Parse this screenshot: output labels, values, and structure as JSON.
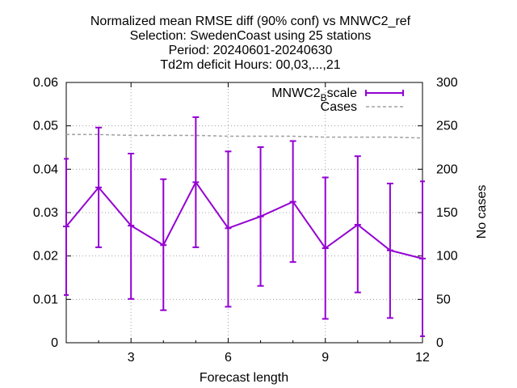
{
  "chart_data": {
    "type": "line",
    "title_lines": [
      "Normalized mean RMSE diff (90% conf) vs MNWC2_ref",
      "Selection: SwedenCoast using    25 stations",
      "Period: 20240601-20240630",
      "Td2m deficit   Hours: 00,03,...,21"
    ],
    "xlabel": "Forecast length",
    "ylabel_right": "No cases",
    "xlim": [
      1,
      12
    ],
    "ylim_left": [
      0,
      0.06
    ],
    "ylim_right": [
      0,
      300
    ],
    "x_ticks": [
      "3",
      "6",
      "9",
      "12"
    ],
    "y_left_ticks": [
      "0",
      "0.01",
      "0.02",
      "0.03",
      "0.04",
      "0.05",
      "0.06"
    ],
    "y_right_ticks": [
      "0",
      "50",
      "100",
      "150",
      "200",
      "250",
      "300"
    ],
    "grid": true,
    "legend_position": "top-right",
    "series": [
      {
        "name": "MNWC2_Bscale",
        "legend_main": "MNWC2",
        "legend_sub": "B",
        "legend_tail": "scale",
        "color": "#9400d3",
        "axis": "left",
        "x": [
          1,
          2,
          3,
          4,
          5,
          6,
          7,
          8,
          9,
          10,
          11,
          12
        ],
        "y": [
          0.0268,
          0.0358,
          0.027,
          0.0225,
          0.037,
          0.0264,
          0.0291,
          0.0325,
          0.0218,
          0.0272,
          0.0213,
          0.0194
        ],
        "err_low": [
          0.011,
          0.022,
          0.0101,
          0.0075,
          0.022,
          0.0083,
          0.0131,
          0.0186,
          0.0055,
          0.0116,
          0.0057,
          0.0015
        ],
        "err_high": [
          0.0424,
          0.0496,
          0.0436,
          0.0377,
          0.052,
          0.0441,
          0.0451,
          0.0465,
          0.0381,
          0.043,
          0.0367,
          0.0372
        ]
      },
      {
        "name": "Cases",
        "color": "#a0a0a0",
        "axis": "right",
        "x": [
          1,
          2,
          3,
          4,
          5,
          6,
          7,
          8,
          9,
          10,
          11,
          12
        ],
        "y": [
          240,
          240,
          239,
          239,
          239,
          238,
          238,
          238,
          237,
          237,
          237,
          236
        ]
      }
    ]
  }
}
